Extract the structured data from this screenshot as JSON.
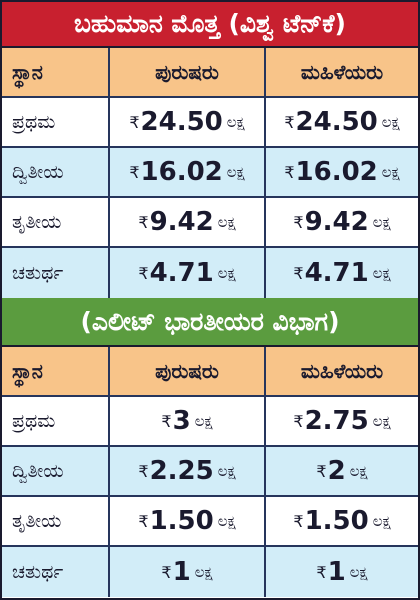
{
  "sections": [
    {
      "title": "ಬಹುಮಾನ ಮೊತ್ತ (ವಿಶ್ವ ಟೆನ್‌ಕೆ)",
      "header": [
        "ಸ್ಥಾನ",
        "ಪುರುಷರು",
        "ಮಹಿಳೆಯರು"
      ],
      "rows": [
        {
          "rank": "ಪ್ರಥಮ",
          "cells": [
            {
              "currency": "₹",
              "amount": "24.50",
              "unit": "ಲಕ್ಷ"
            },
            {
              "currency": "₹",
              "amount": "24.50",
              "unit": "ಲಕ್ಷ"
            }
          ]
        },
        {
          "rank": "ದ್ವಿತೀಯ",
          "cells": [
            {
              "currency": "₹",
              "amount": "16.02",
              "unit": "ಲಕ್ಷ"
            },
            {
              "currency": "₹",
              "amount": "16.02",
              "unit": "ಲಕ್ಷ"
            }
          ]
        },
        {
          "rank": "ತೃತೀಯ",
          "cells": [
            {
              "currency": "₹",
              "amount": "9.42",
              "unit": "ಲಕ್ಷ"
            },
            {
              "currency": "₹",
              "amount": "9.42",
              "unit": "ಲಕ್ಷ"
            }
          ]
        },
        {
          "rank": "ಚತುರ್ಥ",
          "cells": [
            {
              "currency": "₹",
              "amount": "4.71",
              "unit": "ಲಕ್ಷ"
            },
            {
              "currency": "₹",
              "amount": "4.71",
              "unit": "ಲಕ್ಷ"
            }
          ]
        }
      ]
    },
    {
      "title": "(ಎಲೀಟ್ ಭಾರತೀಯರ ವಿಭಾಗ)",
      "header": [
        "ಸ್ಥಾನ",
        "ಪುರುಷರು",
        "ಮಹಿಳೆಯರು"
      ],
      "rows": [
        {
          "rank": "ಪ್ರಥಮ",
          "cells": [
            {
              "currency": "₹",
              "amount": "3",
              "unit": "ಲಕ್ಷ"
            },
            {
              "currency": "₹",
              "amount": "2.75",
              "unit": "ಲಕ್ಷ"
            }
          ]
        },
        {
          "rank": "ದ್ವಿತೀಯ",
          "cells": [
            {
              "currency": "₹",
              "amount": "2.25",
              "unit": "ಲಕ್ಷ"
            },
            {
              "currency": "₹",
              "amount": "2",
              "unit": "ಲಕ್ಷ"
            }
          ]
        },
        {
          "rank": "ತೃತೀಯ",
          "cells": [
            {
              "currency": "₹",
              "amount": "1.50",
              "unit": "ಲಕ್ಷ"
            },
            {
              "currency": "₹",
              "amount": "1.50",
              "unit": "ಲಕ್ಷ"
            }
          ]
        },
        {
          "rank": "ಚತುರ್ಥ",
          "cells": [
            {
              "currency": "₹",
              "amount": "1",
              "unit": "ಲಕ್ಷ"
            },
            {
              "currency": "₹",
              "amount": "1",
              "unit": "ಲಕ್ಷ"
            }
          ]
        }
      ]
    }
  ]
}
